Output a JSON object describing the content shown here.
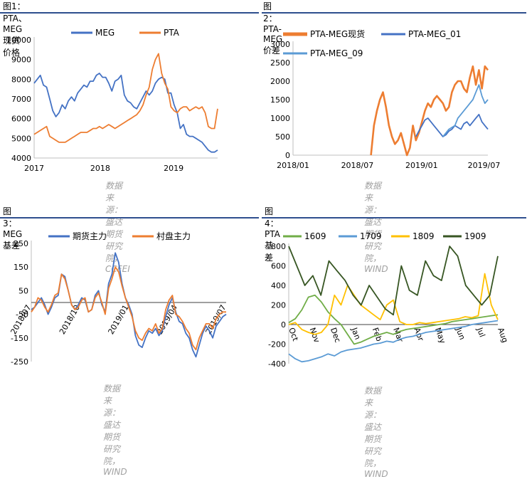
{
  "panels": [
    {
      "title": "图1：PTA、MEG现货价格",
      "source": "数据来源：盛达期货研究院，CCFEI"
    },
    {
      "title": "图2：PTA-MEG价差",
      "source": "数据来源：盛达期货研究院，WIND"
    },
    {
      "title": "图3：MEG基差",
      "source": "数据来源：盛达期货研究院，WIND"
    },
    {
      "title": "图4：PTA基差",
      "source": "数据来源：盛达期货研究院，WIND"
    }
  ],
  "chart_data": [
    {
      "type": "line",
      "title": "图1：PTA、MEG现货价格",
      "ylim": [
        4000,
        10000
      ],
      "yticks": [
        "4000",
        "5000",
        "6000",
        "7000",
        "8000",
        "9000",
        "10000"
      ],
      "xticks": [
        "2017",
        "2018",
        "2019"
      ],
      "grid": false,
      "legend": "top",
      "series": [
        {
          "name": "MEG",
          "color": "#4472C4",
          "values": [
            7800,
            8000,
            8200,
            7700,
            7600,
            7000,
            6400,
            6100,
            6300,
            6700,
            6500,
            6900,
            7100,
            6900,
            7300,
            7500,
            7700,
            7600,
            7900,
            7900,
            8200,
            8300,
            8100,
            8100,
            7800,
            7400,
            7900,
            8000,
            8200,
            7200,
            6900,
            6800,
            6600,
            6500,
            6800,
            7100,
            7400,
            7200,
            7400,
            7800,
            8000,
            8100,
            8000,
            7300,
            7300,
            6700,
            6300,
            5500,
            5700,
            5200,
            5100,
            5100,
            5000,
            4900,
            4800,
            4600,
            4400,
            4300,
            4300,
            4400
          ]
        },
        {
          "name": "PTA",
          "color": "#ED7D31",
          "values": [
            5200,
            5300,
            5400,
            5500,
            5600,
            5100,
            5000,
            4900,
            4800,
            4800,
            4800,
            4900,
            5000,
            5100,
            5200,
            5300,
            5300,
            5300,
            5400,
            5500,
            5500,
            5600,
            5500,
            5600,
            5700,
            5600,
            5500,
            5600,
            5700,
            5800,
            5900,
            6000,
            6100,
            6200,
            6400,
            6700,
            7200,
            7600,
            8500,
            9000,
            9300,
            8300,
            7800,
            7500,
            6600,
            6400,
            6300,
            6500,
            6600,
            6600,
            6400,
            6500,
            6600,
            6500,
            6600,
            6300,
            5600,
            5500,
            5500,
            6500
          ]
        }
      ]
    },
    {
      "type": "line",
      "title": "图2：PTA-MEG价差",
      "ylim": [
        0,
        3000
      ],
      "yticks": [
        "0",
        "500",
        "1000",
        "1500",
        "2000",
        "2500",
        "3000"
      ],
      "xticks": [
        "2018/01",
        "2018/07",
        "2019/01",
        "2019/07"
      ],
      "grid": false,
      "legend": "top",
      "series": [
        {
          "name": "PTA-MEG现货",
          "color": "#ED7D31",
          "values": [
            null,
            null,
            null,
            null,
            null,
            null,
            null,
            null,
            null,
            null,
            null,
            null,
            null,
            null,
            null,
            null,
            null,
            null,
            null,
            null,
            null,
            null,
            null,
            null,
            null,
            null,
            0,
            800,
            1200,
            1500,
            1700,
            1300,
            800,
            500,
            300,
            400,
            600,
            300,
            0,
            200,
            800,
            400,
            600,
            900,
            1200,
            1400,
            1300,
            1500,
            1600,
            1500,
            1400,
            1200,
            1300,
            1700,
            1900,
            2000,
            2000,
            1800,
            1700,
            2100,
            2400,
            1900,
            2300,
            1800,
            2400,
            2300
          ]
        },
        {
          "name": "PTA-MEG_01",
          "color": "#4472C4",
          "values": [
            null,
            null,
            null,
            null,
            null,
            null,
            null,
            null,
            null,
            null,
            null,
            null,
            null,
            null,
            null,
            null,
            null,
            null,
            null,
            null,
            null,
            null,
            null,
            null,
            null,
            null,
            null,
            null,
            null,
            null,
            null,
            null,
            null,
            null,
            null,
            null,
            null,
            null,
            null,
            null,
            null,
            500,
            650,
            800,
            950,
            1000,
            900,
            800,
            700,
            600,
            500,
            550,
            650,
            700,
            800,
            750,
            700,
            850,
            900,
            800,
            900,
            1000,
            1100,
            900,
            800,
            700
          ]
        },
        {
          "name": "PTA-MEG_09",
          "color": "#5B9BD5",
          "values": [
            null,
            null,
            null,
            null,
            null,
            null,
            null,
            null,
            null,
            null,
            null,
            null,
            null,
            null,
            null,
            null,
            null,
            null,
            null,
            null,
            null,
            null,
            null,
            null,
            null,
            null,
            null,
            null,
            null,
            null,
            null,
            null,
            null,
            null,
            null,
            null,
            null,
            null,
            null,
            null,
            null,
            null,
            null,
            null,
            null,
            null,
            null,
            null,
            null,
            null,
            500,
            600,
            700,
            750,
            800,
            1000,
            1100,
            1200,
            1300,
            1400,
            1500,
            1700,
            1900,
            1600,
            1400,
            1500
          ]
        }
      ]
    },
    {
      "type": "line",
      "title": "图3：MEG基差",
      "ylim": [
        -250,
        250
      ],
      "yticks": [
        "-250",
        "-150",
        "-50",
        "50",
        "150",
        "250"
      ],
      "xticks": [
        "2018/07",
        "2018/10",
        "2019/01",
        "2019/04",
        "2019/07"
      ],
      "grid": false,
      "legend": "top",
      "series": [
        {
          "name": "期货主力",
          "color": "#4472C4",
          "values": [
            -30,
            -20,
            0,
            20,
            -10,
            -50,
            -20,
            20,
            30,
            120,
            110,
            50,
            -10,
            -30,
            -10,
            20,
            10,
            -40,
            -30,
            30,
            50,
            -10,
            -40,
            80,
            120,
            210,
            170,
            80,
            20,
            -10,
            -50,
            -140,
            -180,
            -190,
            -150,
            -120,
            -130,
            -110,
            -140,
            -120,
            -60,
            -10,
            20,
            -40,
            -80,
            -90,
            -130,
            -150,
            -200,
            -230,
            -180,
            -130,
            -100,
            -120,
            -150,
            -100,
            -80,
            -60,
            -50
          ]
        },
        {
          "name": "村盘主力",
          "color": "#ED7D31",
          "values": [
            -40,
            -20,
            20,
            10,
            -20,
            -40,
            -10,
            30,
            40,
            120,
            100,
            50,
            -10,
            -30,
            -20,
            10,
            20,
            -40,
            -30,
            20,
            40,
            0,
            -50,
            60,
            100,
            150,
            130,
            70,
            20,
            -20,
            -60,
            -120,
            -150,
            -160,
            -130,
            -110,
            -120,
            -90,
            -130,
            -110,
            -30,
            10,
            30,
            -50,
            -60,
            -80,
            -110,
            -130,
            -180,
            -200,
            -150,
            -120,
            -90,
            -90,
            -110,
            -70,
            -50,
            -40,
            -40
          ]
        }
      ]
    },
    {
      "type": "line",
      "title": "图4：PTA基差",
      "ylim": [
        -400,
        800
      ],
      "yticks": [
        "-400",
        "-200",
        "0",
        "200",
        "400",
        "600",
        "800"
      ],
      "xticks": [
        "Oct",
        "Nov",
        "Dec",
        "Jan",
        "Feb",
        "Mar",
        "Apr",
        "May",
        "Jun",
        "Jul",
        "Aug"
      ],
      "grid": false,
      "legend": "top",
      "series": [
        {
          "name": "1609",
          "color": "#70AD47",
          "values": [
            20,
            60,
            150,
            280,
            300,
            230,
            130,
            60,
            0,
            -100,
            -200,
            -180,
            -150,
            -120,
            -100,
            -80,
            -100,
            -70,
            -50,
            -40,
            -30,
            -20,
            -10,
            0,
            10,
            30,
            40,
            50,
            60,
            70,
            80,
            90,
            100
          ]
        },
        {
          "name": "1709",
          "color": "#5B9BD5",
          "values": [
            -300,
            -350,
            -380,
            -370,
            -350,
            -330,
            -300,
            -320,
            -280,
            -260,
            -250,
            -240,
            -220,
            -200,
            -190,
            -170,
            -180,
            -150,
            -130,
            -120,
            -100,
            -80,
            -70,
            -60,
            -50,
            -40,
            -30,
            -20,
            0,
            10,
            20,
            30,
            40
          ]
        },
        {
          "name": "1809",
          "color": "#FFC000",
          "values": [
            0,
            20,
            -50,
            -80,
            -100,
            -80,
            0,
            300,
            200,
            400,
            300,
            200,
            150,
            100,
            50,
            200,
            250,
            30,
            0,
            0,
            20,
            10,
            20,
            30,
            40,
            50,
            60,
            80,
            70,
            90,
            520,
            200,
            50
          ]
        },
        {
          "name": "1909",
          "color": "#375623",
          "values": [
            800,
            600,
            400,
            500,
            300,
            650,
            550,
            450,
            300,
            200,
            400,
            280,
            160,
            100,
            600,
            350,
            300,
            650,
            500,
            450,
            800,
            700,
            400,
            300,
            200,
            300,
            700
          ]
        }
      ]
    }
  ]
}
